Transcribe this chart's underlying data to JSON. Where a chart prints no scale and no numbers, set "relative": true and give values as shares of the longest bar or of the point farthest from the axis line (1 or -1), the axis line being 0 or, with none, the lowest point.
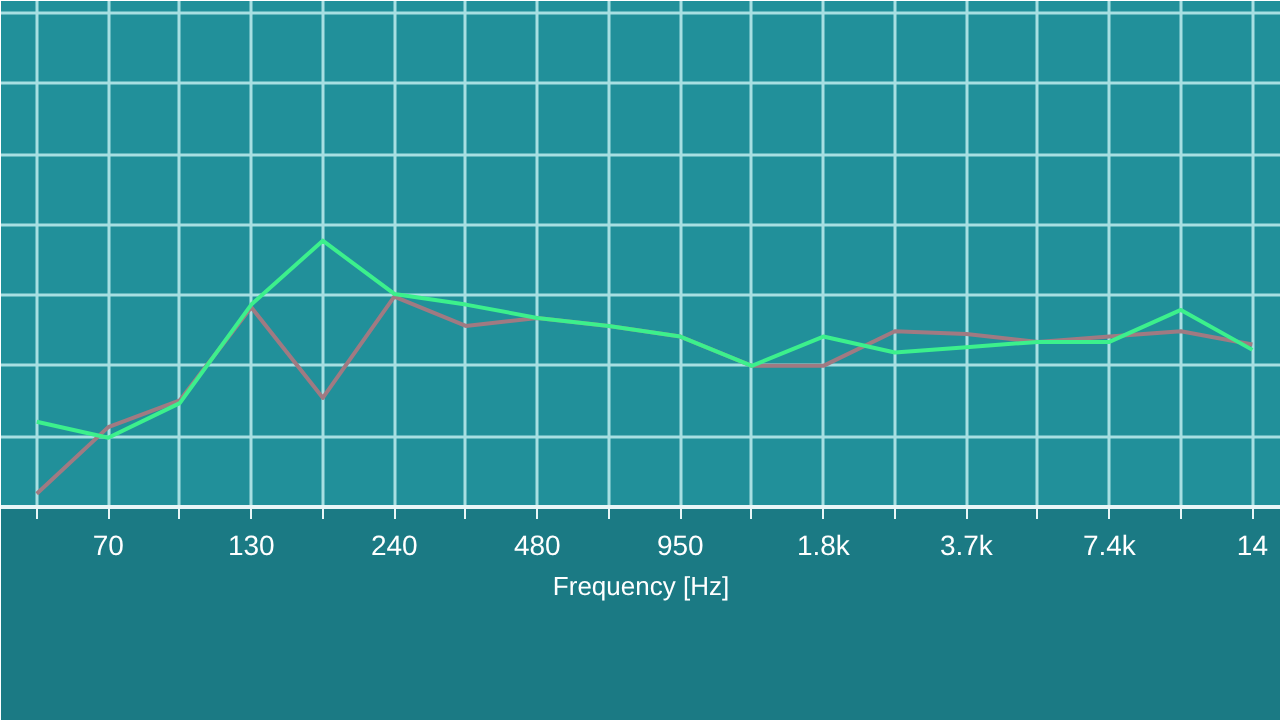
{
  "chart_data": {
    "type": "line",
    "xlabel": "Frequency [Hz]",
    "relative": true,
    "grid": true,
    "tick_labels": "x",
    "categories": [
      null,
      "70",
      null,
      "130",
      null,
      "240",
      null,
      "480",
      null,
      "950",
      null,
      "1.8k",
      null,
      "3.7k",
      null,
      "7.4k",
      null,
      "14"
    ],
    "series": [
      {
        "color": "#a07a82",
        "values": [
          0.05,
          0.3,
          0.4,
          0.75,
          0.41,
          0.79,
          0.68,
          0.71,
          0.68,
          0.64,
          0.53,
          0.53,
          0.66,
          0.65,
          0.62,
          0.64,
          0.66,
          0.61
        ]
      },
      {
        "color": "#3cf08c",
        "values": [
          0.32,
          0.26,
          0.39,
          0.76,
          1,
          0.8,
          0.76,
          0.71,
          0.68,
          0.64,
          0.53,
          0.64,
          0.58,
          0.6,
          0.62,
          0.62,
          0.74,
          0.59
        ]
      }
    ]
  }
}
